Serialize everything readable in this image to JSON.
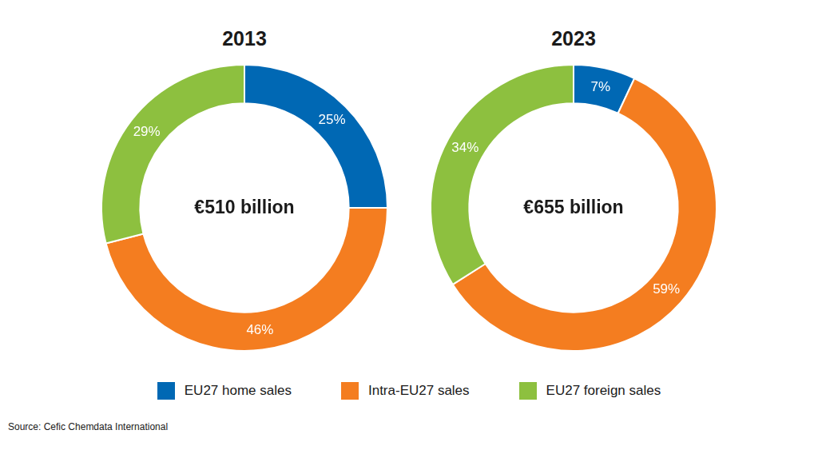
{
  "chart_data": [
    {
      "type": "doughnut",
      "title": "2013",
      "annotation": "€510 billion",
      "categories": [
        "EU27 home sales",
        "Intra-EU27 sales",
        "EU27 foreign sales"
      ],
      "values": [
        25,
        46,
        29
      ],
      "value_labels": [
        "25%",
        "46%",
        "29%"
      ],
      "colors": [
        "#0068b4",
        "#f47d20",
        "#8dc03f"
      ],
      "data_labels": true,
      "legend": "bottom"
    },
    {
      "type": "doughnut",
      "title": "2023",
      "annotation": "€655 billion",
      "categories": [
        "EU27 home sales",
        "Intra-EU27 sales",
        "EU27 foreign sales"
      ],
      "values": [
        7,
        59,
        34
      ],
      "value_labels": [
        "7%",
        "59%",
        "34%"
      ],
      "colors": [
        "#0068b4",
        "#f47d20",
        "#8dc03f"
      ],
      "data_labels": true,
      "legend": "bottom"
    }
  ],
  "source": "Source: Cefic Chemdata International"
}
